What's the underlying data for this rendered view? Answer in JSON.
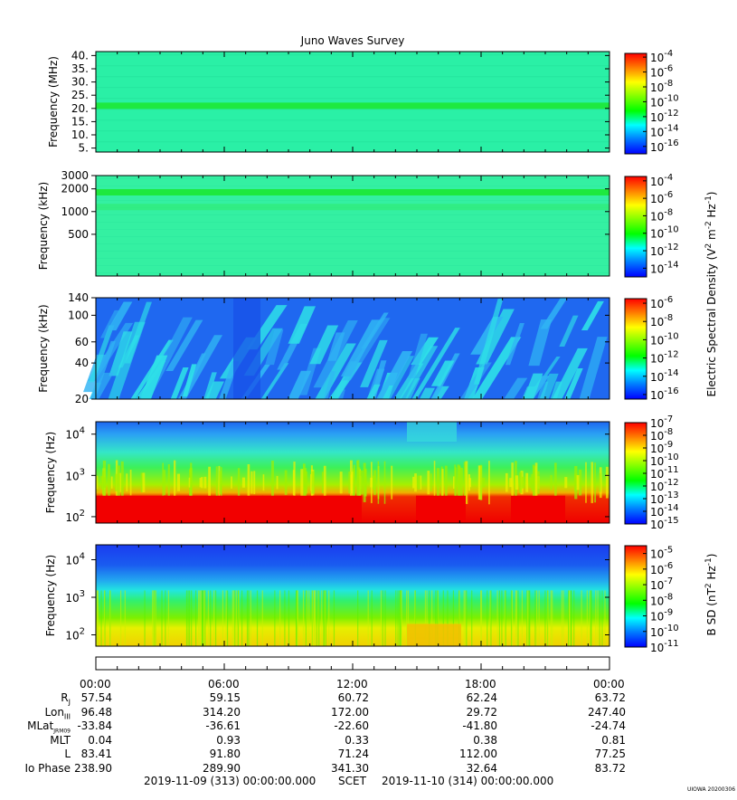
{
  "title": "Juno Waves Survey",
  "credit": "UIOWA 20200306",
  "colors": {
    "background": "#ffffff",
    "frame": "#000000",
    "colormap": [
      "#0000ff",
      "#0078ff",
      "#00ffff",
      "#00ff00",
      "#7fff00",
      "#ffff00",
      "#ff7f00",
      "#ff0000"
    ]
  },
  "chart_data": [
    {
      "type": "heatmap",
      "name": "panel-hfwbr",
      "ylabel": "Frequency (MHz)",
      "yscale": "linear",
      "ylim": [
        3.5,
        41.5
      ],
      "yticks": [
        5,
        10,
        15,
        20,
        25,
        30,
        35,
        40
      ],
      "yticklabels": [
        "5.",
        "10.",
        "15.",
        "20.",
        "25.",
        "30.",
        "35.",
        "40."
      ],
      "colorbar_exponents": [
        -4,
        -6,
        -8,
        -10,
        -12,
        -14,
        -16
      ],
      "colorbar_range": [
        -17,
        -3.5
      ],
      "colorbar_label": "",
      "background_level": "cyan-green",
      "bands": [
        {
          "frequency": 21,
          "level": "green"
        }
      ]
    },
    {
      "type": "heatmap",
      "name": "panel-hfr",
      "ylabel": "Frequency (kHz)",
      "yscale": "log",
      "ylim": [
        140,
        3000
      ],
      "yticks": [
        500,
        1000,
        2000,
        3000
      ],
      "yticklabels": [
        "500",
        "1000",
        "2000",
        "3000"
      ],
      "colorbar_exponents": [
        -4,
        -6,
        -8,
        -10,
        -12,
        -14
      ],
      "colorbar_range": [
        -15,
        -3.5
      ],
      "background_level": "cyan-green",
      "bands": [
        {
          "frequency": 1800,
          "level": "green"
        },
        {
          "frequency": 1150,
          "level": "light-green"
        }
      ]
    },
    {
      "type": "heatmap",
      "name": "panel-lfr-high",
      "ylabel": "Frequency (kHz)",
      "yscale": "log",
      "ylim": [
        20,
        140
      ],
      "yticks": [
        20,
        40,
        60,
        100,
        140
      ],
      "yticklabels": [
        "20",
        "40",
        "60",
        "100",
        "140"
      ],
      "colorbar_exponents": [
        -6,
        -8,
        -10,
        -12,
        -14,
        -16
      ],
      "colorbar_range": [
        -16.5,
        -5.5
      ],
      "background_level": "blue",
      "features": "scattered cyan streaks"
    },
    {
      "type": "heatmap",
      "name": "panel-lfr-low",
      "ylabel": "Frequency (Hz)",
      "yscale": "log",
      "ylim": [
        70,
        20000
      ],
      "yticks": [
        100,
        1000,
        10000
      ],
      "ytick_bases": [
        "10",
        "10",
        "10"
      ],
      "ytick_exps": [
        "2",
        "3",
        "4"
      ],
      "colorbar_exponents": [
        -7,
        -8,
        -9,
        -10,
        -11,
        -12,
        -13,
        -14,
        -15
      ],
      "colorbar_range": [
        -15,
        -7
      ],
      "profile": [
        "red below 300 Hz",
        "yellow-green 300-3000 Hz",
        "blue above 5000 Hz"
      ]
    },
    {
      "type": "heatmap",
      "name": "panel-magnetic",
      "ylabel": "Frequency (Hz)",
      "yscale": "log",
      "ylim": [
        50,
        25000
      ],
      "yticks": [
        100,
        1000,
        10000
      ],
      "ytick_bases": [
        "10",
        "10",
        "10"
      ],
      "ytick_exps": [
        "2",
        "3",
        "4"
      ],
      "colorbar_exponents": [
        -5,
        -6,
        -7,
        -8,
        -9,
        -10,
        -11
      ],
      "colorbar_range": [
        -11,
        -4.5
      ],
      "profile": [
        "yellow below 200 Hz",
        "green 200-2000 Hz",
        "blue above 5000 Hz"
      ]
    }
  ],
  "colorbar_labels": {
    "electric": {
      "base": "Electric Spectral Density (V",
      "sup1": "2",
      "mid1": " m",
      "sup2": "-2",
      "mid2": " Hz",
      "sup3": "-1",
      "end": ")"
    },
    "magnetic": {
      "base": "B SD (nT",
      "sup1": "2",
      "mid1": " Hz",
      "sup2": "-1",
      "end": ")"
    }
  },
  "time_axis": {
    "labels": [
      "00:00",
      "06:00",
      "12:00",
      "18:00",
      "00:00"
    ],
    "start": "2019-11-09 (313) 00:00:00.000",
    "middle": "SCET",
    "end": "2019-11-10 (314) 00:00:00.000"
  },
  "ephemeris": [
    {
      "label": "R",
      "sub": "J",
      "values": [
        "57.54",
        "59.15",
        "60.72",
        "62.24",
        "63.72"
      ]
    },
    {
      "label": "Lon",
      "sub": "III",
      "values": [
        "96.48",
        "314.20",
        "172.00",
        "29.72",
        "247.40"
      ]
    },
    {
      "label": "MLat",
      "sub": "JRM09",
      "values": [
        "-33.84",
        "-36.61",
        "-22.60",
        "-41.80",
        "-24.74"
      ]
    },
    {
      "label": "MLT",
      "sub": "",
      "values": [
        "0.04",
        "0.93",
        "0.33",
        "0.38",
        "0.81"
      ]
    },
    {
      "label": "L",
      "sub": "",
      "values": [
        "83.41",
        "91.80",
        "71.24",
        "112.00",
        "77.25"
      ]
    },
    {
      "label": "Io Phase",
      "sub": "",
      "values": [
        "238.90",
        "289.90",
        "341.30",
        "32.64",
        "83.72"
      ]
    }
  ]
}
